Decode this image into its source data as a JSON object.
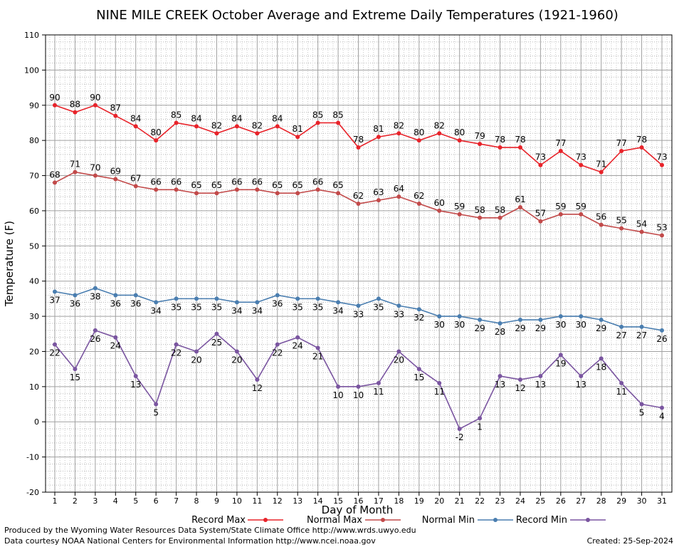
{
  "chart_data": {
    "type": "line",
    "title": "NINE MILE CREEK October Average and Extreme Daily Temperatures (1921-1960)",
    "xlabel": "Day of Month",
    "ylabel": "Temperature (F)",
    "ylim": [
      -20,
      110
    ],
    "y_major_step": 10,
    "y_minor_step": 2,
    "grid": true,
    "legend_position": "bottom",
    "x": [
      1,
      2,
      3,
      4,
      5,
      6,
      7,
      8,
      9,
      10,
      11,
      12,
      13,
      14,
      15,
      16,
      17,
      18,
      19,
      20,
      21,
      22,
      23,
      24,
      25,
      26,
      27,
      28,
      29,
      30,
      31
    ],
    "series": [
      {
        "name": "Record Max",
        "color": "#e8232a",
        "label_position": "above",
        "values": [
          90,
          88,
          90,
          87,
          84,
          80,
          85,
          84,
          82,
          84,
          82,
          84,
          81,
          85,
          85,
          78,
          81,
          82,
          80,
          82,
          80,
          79,
          78,
          78,
          73,
          77,
          73,
          71,
          77,
          78,
          73
        ]
      },
      {
        "name": "Normal Max",
        "color": "#c24a4a",
        "label_position": "above",
        "values": [
          68,
          71,
          70,
          69,
          67,
          66,
          66,
          65,
          65,
          66,
          66,
          65,
          65,
          66,
          65,
          62,
          63,
          64,
          62,
          60,
          59,
          58,
          58,
          61,
          57,
          59,
          59,
          56,
          55,
          54,
          53
        ]
      },
      {
        "name": "Normal Min",
        "color": "#4a7eb0",
        "label_position": "below",
        "values": [
          37,
          36,
          38,
          36,
          36,
          34,
          35,
          35,
          35,
          34,
          34,
          36,
          35,
          35,
          34,
          33,
          35,
          33,
          32,
          30,
          30,
          29,
          28,
          29,
          29,
          30,
          30,
          29,
          27,
          27,
          26
        ]
      },
      {
        "name": "Record Min",
        "color": "#7a55a0",
        "label_position": "below",
        "values": [
          22,
          15,
          26,
          24,
          13,
          5,
          22,
          20,
          25,
          20,
          12,
          22,
          24,
          21,
          10,
          10,
          11,
          20,
          15,
          11,
          -2,
          1,
          13,
          12,
          13,
          19,
          13,
          18,
          11,
          5,
          4
        ]
      }
    ]
  },
  "footer": {
    "producer": "Produced by the Wyoming Water Resources Data System/State Climate Office http://www.wrds.uwyo.edu",
    "source": "Data courtesy NOAA National Centers for Environmental Information http://www.ncei.noaa.gov",
    "created": "Created:  25-Sep-2024"
  }
}
